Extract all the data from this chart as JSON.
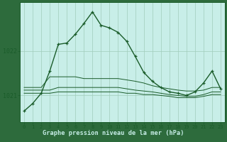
{
  "title": "Graphe pression niveau de la mer (hPa)",
  "bg_color": "#c8eee8",
  "plot_bg_color": "#c8eee8",
  "label_bg_color": "#2d6b3c",
  "grid_color": "#a0ccbb",
  "line_color": "#1a5c2a",
  "tick_label_color": "#1a5c2a",
  "title_color": "#c8eee8",
  "x_labels": [
    "0",
    "1",
    "2",
    "3",
    "4",
    "5",
    "6",
    "7",
    "8",
    "9",
    "10",
    "11",
    "12",
    "13",
    "14",
    "15",
    "16",
    "17",
    "18",
    "19",
    "20",
    "21",
    "22",
    "23"
  ],
  "hours": [
    0,
    1,
    2,
    3,
    4,
    5,
    6,
    7,
    8,
    9,
    10,
    11,
    12,
    13,
    14,
    15,
    16,
    17,
    18,
    19,
    20,
    21,
    22,
    23
  ],
  "ylim": [
    1020.4,
    1023.1
  ],
  "yticks": [
    1021,
    1022
  ],
  "series": {
    "main": [
      1020.65,
      1020.82,
      1021.05,
      1021.55,
      1022.15,
      1022.18,
      1022.38,
      1022.62,
      1022.88,
      1022.58,
      1022.52,
      1022.42,
      1022.22,
      1021.88,
      1021.52,
      1021.32,
      1021.18,
      1021.08,
      1021.05,
      1021.0,
      1021.08,
      1021.28,
      1021.55,
      1021.15
    ],
    "smooth1": [
      1021.18,
      1021.18,
      1021.18,
      1021.42,
      1021.42,
      1021.42,
      1021.42,
      1021.38,
      1021.38,
      1021.38,
      1021.38,
      1021.38,
      1021.35,
      1021.32,
      1021.28,
      1021.22,
      1021.18,
      1021.15,
      1021.12,
      1021.1,
      1021.1,
      1021.12,
      1021.18,
      1021.18
    ],
    "smooth2": [
      1021.12,
      1021.12,
      1021.12,
      1021.12,
      1021.18,
      1021.18,
      1021.18,
      1021.18,
      1021.18,
      1021.18,
      1021.18,
      1021.18,
      1021.15,
      1021.12,
      1021.1,
      1021.08,
      1021.05,
      1021.02,
      1021.0,
      1020.98,
      1020.98,
      1021.02,
      1021.08,
      1021.08
    ],
    "smooth3": [
      1021.05,
      1021.05,
      1021.05,
      1021.05,
      1021.08,
      1021.08,
      1021.08,
      1021.08,
      1021.08,
      1021.08,
      1021.08,
      1021.08,
      1021.05,
      1021.05,
      1021.02,
      1021.02,
      1021.0,
      1020.98,
      1020.95,
      1020.95,
      1020.95,
      1020.98,
      1021.02,
      1021.02
    ]
  }
}
